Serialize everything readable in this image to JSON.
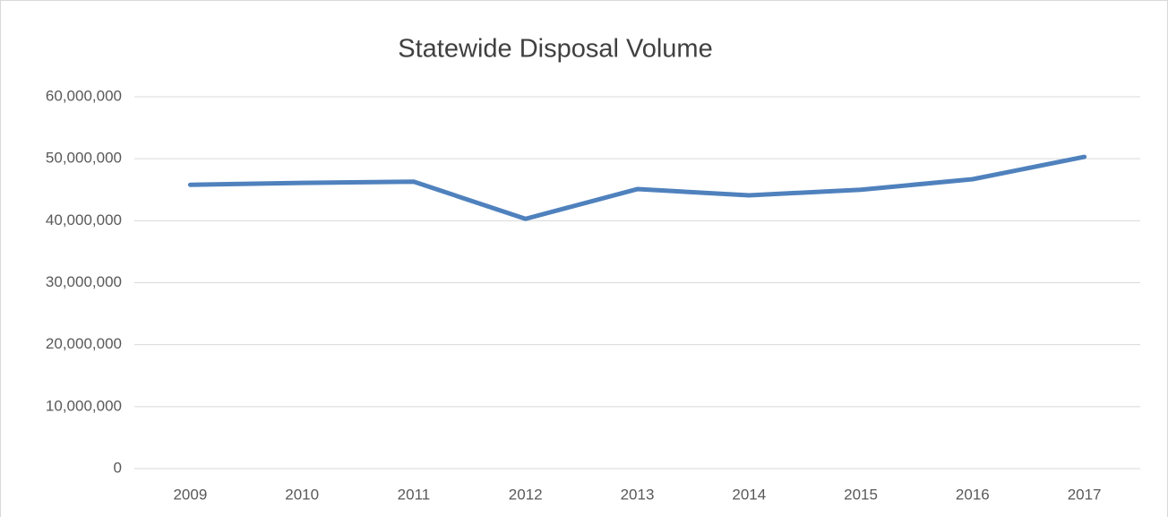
{
  "chart_data": {
    "type": "line",
    "title": "Statewide Disposal Volume",
    "categories": [
      "2009",
      "2010",
      "2011",
      "2012",
      "2013",
      "2014",
      "2015",
      "2016",
      "2017"
    ],
    "series": [
      {
        "name": "Statewide Disposal Volume",
        "color": "#4f81bd",
        "values": [
          45800000,
          46100000,
          46300000,
          40300000,
          45100000,
          44100000,
          45000000,
          46700000,
          50300000
        ]
      }
    ],
    "ylim": [
      0,
      60000000
    ],
    "yticks": [
      0,
      {
        "value": 10000000,
        "label": "10,000,000"
      },
      {
        "value": 20000000,
        "label": "20,000,000"
      },
      {
        "value": 30000000,
        "label": "30,000,000"
      },
      {
        "value": 40000000,
        "label": "40,000,000"
      },
      {
        "value": 50000000,
        "label": "50,000,000"
      },
      {
        "value": 60000000,
        "label": "60,000,000"
      }
    ],
    "grid": true
  }
}
